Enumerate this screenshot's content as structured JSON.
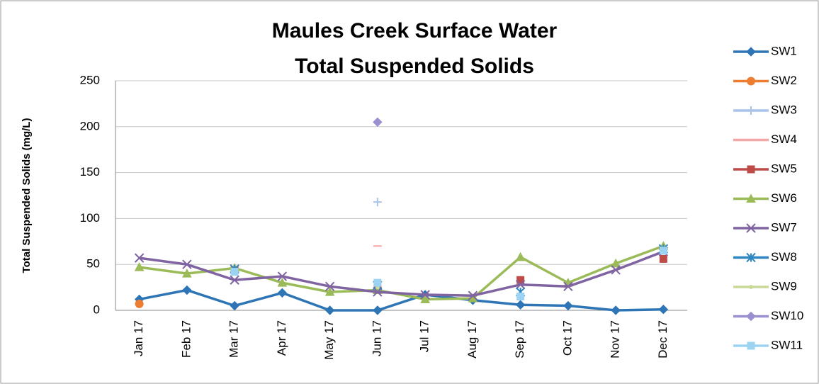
{
  "chart_data": {
    "type": "line",
    "title": [
      "Maules Creek Surface Water",
      "Total Suspended Solids"
    ],
    "y_label": "Total Suspended Solids (mg/L)",
    "categories": [
      "Jan 17",
      "Feb 17",
      "Mar 17",
      "Apr 17",
      "May 17",
      "Jun 17",
      "Jul 17",
      "Aug 17",
      "Sep 17",
      "Oct 17",
      "Nov 17",
      "Dec 17"
    ],
    "ylim": [
      0,
      250
    ],
    "yticks": [
      0,
      50,
      100,
      150,
      200,
      250
    ],
    "grid": true,
    "legend": "right",
    "series": [
      {
        "name": "SW1",
        "color": "#2e75b6",
        "marker": "diamond",
        "values": [
          12,
          22,
          5,
          19,
          0,
          0,
          17,
          11,
          6,
          5,
          0,
          1
        ]
      },
      {
        "name": "SW2",
        "color": "#ed7d31",
        "marker": "circle",
        "values": [
          7,
          null,
          null,
          null,
          null,
          null,
          null,
          null,
          null,
          null,
          null,
          null
        ]
      },
      {
        "name": "SW3",
        "color": "#a9c4eb",
        "marker": "plus",
        "values": [
          null,
          null,
          null,
          null,
          null,
          118,
          null,
          null,
          null,
          null,
          null,
          null
        ]
      },
      {
        "name": "SW4",
        "color": "#f4a6a6",
        "marker": "dash",
        "values": [
          null,
          null,
          null,
          null,
          null,
          70,
          null,
          null,
          null,
          null,
          null,
          null
        ]
      },
      {
        "name": "SW5",
        "color": "#be4b48",
        "marker": "square",
        "values": [
          null,
          null,
          44,
          null,
          null,
          24,
          null,
          null,
          33,
          null,
          null,
          56
        ]
      },
      {
        "name": "SW6",
        "color": "#9bbb59",
        "marker": "triangle",
        "values": [
          47,
          40,
          46,
          30,
          20,
          22,
          12,
          13,
          58,
          30,
          51,
          70
        ]
      },
      {
        "name": "SW7",
        "color": "#8064a2",
        "marker": "x",
        "values": [
          57,
          50,
          33,
          37,
          26,
          20,
          17,
          16,
          28,
          26,
          44,
          64
        ]
      },
      {
        "name": "SW8",
        "color": "#2e86c1",
        "marker": "star",
        "values": [
          null,
          null,
          45,
          null,
          null,
          27,
          null,
          null,
          20,
          null,
          null,
          67
        ]
      },
      {
        "name": "SW9",
        "color": "#c9d99a",
        "marker": "dot",
        "values": [
          null,
          null,
          null,
          null,
          null,
          25,
          null,
          null,
          null,
          null,
          null,
          null
        ]
      },
      {
        "name": "SW10",
        "color": "#9a8fd0",
        "marker": "diamond",
        "values": [
          null,
          null,
          null,
          null,
          null,
          205,
          null,
          null,
          null,
          null,
          null,
          null
        ]
      },
      {
        "name": "SW11",
        "color": "#9dd3f2",
        "marker": "square",
        "values": [
          null,
          null,
          42,
          null,
          null,
          30,
          null,
          null,
          15,
          null,
          null,
          65
        ]
      }
    ]
  }
}
